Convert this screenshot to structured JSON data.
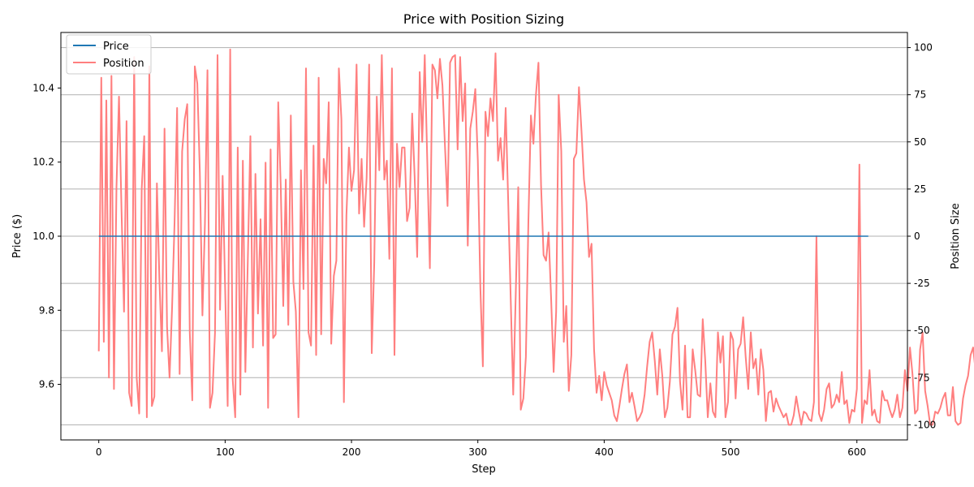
{
  "chart_data": {
    "type": "line",
    "title": "Price with Position Sizing",
    "xlabel": "Step",
    "ylabel_left": "Price ($)",
    "ylabel_right": "Position Size",
    "xlim": [
      -30,
      640
    ],
    "ylim_left": [
      9.45,
      10.55
    ],
    "ylim_right": [
      -108,
      108
    ],
    "x_ticks": [
      0,
      100,
      200,
      300,
      400,
      500,
      600
    ],
    "y_left_ticks": [
      9.6,
      9.8,
      10.0,
      10.2,
      10.4
    ],
    "y_right_ticks": [
      -100,
      -75,
      -50,
      -25,
      0,
      25,
      50,
      75,
      100
    ],
    "grid": "right-axis horizontal",
    "legend_position": "top-left",
    "legend": [
      "Price",
      "Position"
    ],
    "colors": {
      "price": "#1f77b4",
      "position": "#ff7f7f"
    },
    "series": [
      {
        "name": "Price",
        "axis": "left",
        "x_start": 0,
        "x_end": 609,
        "values": [
          10.0,
          10.0
        ]
      },
      {
        "name": "Position",
        "axis": "right",
        "x_step": 2,
        "values": [
          -61,
          84,
          -56,
          72,
          -75,
          85,
          -81,
          26,
          74,
          14,
          -40,
          61,
          -83,
          -90,
          95,
          -75,
          -94,
          25,
          53,
          -96,
          90,
          -90,
          -85,
          28,
          -23,
          -61,
          57,
          -48,
          -75,
          -38,
          8,
          68,
          -73,
          45,
          62,
          70,
          -51,
          -87,
          90,
          81,
          34,
          -42,
          7,
          88,
          -91,
          -83,
          -51,
          96,
          -39,
          32,
          -28,
          -90,
          99,
          -76,
          -96,
          47,
          -84,
          40,
          -72,
          -11,
          53,
          -59,
          33,
          -41,
          9,
          -58,
          39,
          -91,
          46,
          -54,
          -52,
          71,
          26,
          -37,
          30,
          -47,
          64,
          -24,
          -40,
          -96,
          35,
          -28,
          89,
          -51,
          -58,
          48,
          -63,
          84,
          -52,
          41,
          28,
          71,
          -57,
          -21,
          -13,
          89,
          62,
          -88,
          11,
          47,
          24,
          35,
          91,
          12,
          41,
          5,
          31,
          91,
          -62,
          -14,
          74,
          35,
          96,
          30,
          40,
          -12,
          89,
          -63,
          49,
          26,
          47,
          47,
          8,
          15,
          65,
          31,
          -11,
          87,
          50,
          96,
          40,
          -17,
          91,
          88,
          73,
          94,
          80,
          48,
          16,
          92,
          95,
          96,
          46,
          95,
          61,
          81,
          -5,
          57,
          66,
          78,
          40,
          -27,
          -69,
          66,
          53,
          73,
          61,
          97,
          40,
          52,
          30,
          68,
          19,
          -33,
          -84,
          -31,
          26,
          -92,
          -86,
          -64,
          8,
          64,
          49,
          75,
          92,
          27,
          -10,
          -13,
          2,
          -33,
          -72,
          -40,
          75,
          45,
          -56,
          -37,
          -82,
          -63,
          41,
          44,
          79,
          56,
          30,
          18,
          -11,
          -4,
          -60,
          -83,
          -74,
          -87,
          -72,
          -79,
          -83,
          -87,
          -95,
          -98,
          -90,
          -81,
          -73,
          -68,
          -88,
          -83,
          -90,
          -98,
          -96,
          -93,
          -84,
          -69,
          -56,
          -51,
          -66,
          -84,
          -60,
          -74,
          -96,
          -91,
          -77,
          -52,
          -48,
          -38,
          -77,
          -92,
          -58,
          -96,
          -96,
          -60,
          -71,
          -84,
          -85,
          -44,
          -66,
          -96,
          -78,
          -93,
          -96,
          -51,
          -67,
          -53,
          -96,
          -88,
          -51,
          -55,
          -86,
          -60,
          -57,
          -43,
          -64,
          -81,
          -51,
          -70,
          -65,
          -84,
          -60,
          -71,
          -98,
          -83,
          -82,
          -93,
          -86,
          -90,
          -93,
          -96,
          -94,
          -100,
          -100,
          -95,
          -85,
          -93,
          -100,
          -93,
          -94,
          -97,
          -98,
          -88,
          0,
          -94,
          -98,
          -92,
          -81,
          -78,
          -91,
          -89,
          -84,
          -88,
          -72,
          -89,
          -87,
          -99,
          -92,
          -93,
          -81,
          38,
          -99,
          -87,
          -89,
          -71,
          -95,
          -92,
          -98,
          -99,
          -82,
          -87,
          -87,
          -92,
          -96,
          -92,
          -84,
          -96,
          -91,
          -71,
          -82,
          -59,
          -73,
          -94,
          -92,
          -60,
          -51,
          -82,
          -90,
          -100,
          -100,
          -93,
          -94,
          -91,
          -86,
          -83,
          -95,
          -95,
          -80,
          -98,
          -100,
          -99,
          -86,
          -79,
          -74,
          -63,
          -59,
          -72,
          -85,
          -94,
          -85,
          -70,
          -56,
          -83,
          -98,
          -94,
          -90,
          -83,
          -88,
          -96,
          -92,
          -80,
          -69,
          -81,
          -87,
          -93,
          -98,
          -99,
          -100,
          -96,
          -88,
          -88,
          -93,
          -99,
          -100,
          -98,
          -92,
          -86,
          -84,
          -78,
          -92,
          -98,
          -100,
          -97,
          -95,
          -93,
          -89,
          33,
          -67,
          -97,
          -82,
          -79,
          -75,
          -67,
          -49,
          -44,
          -83,
          -78,
          -99,
          -58,
          -66,
          -58,
          -85,
          -99,
          -87,
          -76,
          -68,
          -60,
          -55,
          -96,
          64,
          -53,
          -43,
          -79,
          -95,
          14,
          -43,
          -94,
          -86,
          -63,
          -69,
          -86,
          -38,
          20,
          -60,
          -69,
          -98,
          -97,
          -88,
          -83,
          -77,
          -74,
          -60,
          -47,
          -61,
          -87,
          -76,
          -53,
          11,
          -93,
          3,
          -82,
          -74,
          -73,
          -69,
          4,
          33,
          48,
          71,
          85,
          98,
          85,
          62,
          27,
          -30,
          -86,
          -96,
          -41,
          2,
          22,
          50,
          73,
          38,
          -4,
          -31,
          38,
          67,
          82,
          94,
          -11,
          -30,
          -53,
          71,
          81,
          47,
          58,
          93,
          83,
          98,
          32,
          5,
          -23,
          -41,
          -91,
          -94,
          54,
          35,
          98,
          98,
          89,
          61,
          -35,
          26,
          51,
          71,
          84,
          97,
          88,
          51,
          22,
          17,
          23,
          66,
          98,
          84,
          95,
          97,
          88,
          89,
          97,
          93,
          98,
          99,
          100,
          100,
          99,
          97,
          98,
          99,
          100,
          100,
          99,
          98,
          99,
          100,
          100,
          99,
          98,
          100,
          100,
          99,
          100,
          100,
          99,
          99,
          98,
          98,
          68,
          55,
          93,
          100,
          100,
          99,
          98,
          99,
          100,
          100,
          99,
          98,
          100,
          100,
          99,
          98,
          95,
          98,
          99,
          97,
          95
        ]
      }
    ]
  }
}
